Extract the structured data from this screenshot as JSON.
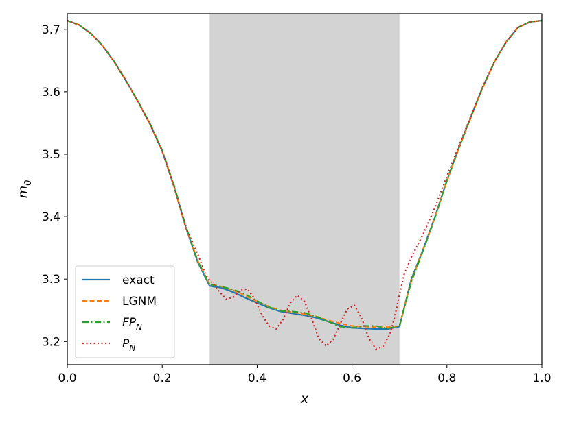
{
  "chart_data": {
    "type": "line",
    "xlabel": "x",
    "ylabel": "m",
    "ylabel_sub": "0",
    "xlim": [
      0.0,
      1.0
    ],
    "ylim": [
      3.163,
      3.725
    ],
    "xticks": [
      0.0,
      0.2,
      0.4,
      0.6,
      0.8,
      1.0
    ],
    "xtick_labels": [
      "0.0",
      "0.2",
      "0.4",
      "0.6",
      "0.8",
      "1.0"
    ],
    "yticks": [
      3.2,
      3.3,
      3.4,
      3.5,
      3.6,
      3.7
    ],
    "ytick_labels": [
      "3.2",
      "3.3",
      "3.4",
      "3.5",
      "3.6",
      "3.7"
    ],
    "grid": false,
    "shaded_region": {
      "x_start": 0.3,
      "x_end": 0.7,
      "color": "#d3d3d3"
    },
    "legend_position": "lower-left",
    "series": [
      {
        "name": "exact",
        "color": "#1f77b4",
        "style": "solid",
        "x": [
          0.0,
          0.025,
          0.05,
          0.075,
          0.1,
          0.125,
          0.15,
          0.175,
          0.2,
          0.225,
          0.25,
          0.275,
          0.3,
          0.325,
          0.35,
          0.375,
          0.4,
          0.425,
          0.45,
          0.475,
          0.5,
          0.525,
          0.55,
          0.575,
          0.6,
          0.625,
          0.65,
          0.675,
          0.7,
          0.725,
          0.75,
          0.775,
          0.8,
          0.825,
          0.85,
          0.875,
          0.9,
          0.925,
          0.95,
          0.975,
          1.0
        ],
        "y": [
          3.714,
          3.707,
          3.693,
          3.673,
          3.647,
          3.616,
          3.583,
          3.547,
          3.505,
          3.448,
          3.382,
          3.327,
          3.289,
          3.286,
          3.279,
          3.27,
          3.262,
          3.254,
          3.248,
          3.245,
          3.242,
          3.238,
          3.232,
          3.226,
          3.222,
          3.221,
          3.22,
          3.22,
          3.224,
          3.3,
          3.348,
          3.4,
          3.458,
          3.51,
          3.559,
          3.607,
          3.648,
          3.68,
          3.703,
          3.712,
          3.714
        ]
      },
      {
        "name": "LGNM",
        "color": "#ff7f0e",
        "style": "dashed",
        "x": [
          0.0,
          0.025,
          0.05,
          0.075,
          0.1,
          0.125,
          0.15,
          0.175,
          0.2,
          0.225,
          0.25,
          0.275,
          0.3,
          0.325,
          0.35,
          0.375,
          0.4,
          0.425,
          0.45,
          0.475,
          0.5,
          0.525,
          0.55,
          0.575,
          0.6,
          0.625,
          0.65,
          0.675,
          0.7,
          0.725,
          0.75,
          0.775,
          0.8,
          0.825,
          0.85,
          0.875,
          0.9,
          0.925,
          0.95,
          0.975,
          1.0
        ],
        "y": [
          3.714,
          3.707,
          3.693,
          3.673,
          3.647,
          3.616,
          3.583,
          3.547,
          3.505,
          3.448,
          3.382,
          3.329,
          3.292,
          3.288,
          3.282,
          3.273,
          3.264,
          3.256,
          3.25,
          3.247,
          3.244,
          3.24,
          3.234,
          3.229,
          3.225,
          3.224,
          3.223,
          3.223,
          3.225,
          3.298,
          3.347,
          3.399,
          3.457,
          3.509,
          3.558,
          3.606,
          3.648,
          3.68,
          3.703,
          3.712,
          3.714
        ]
      },
      {
        "name": "FP",
        "name_sub": "N",
        "color": "#2ca02c",
        "style": "dashdot",
        "x": [
          0.0,
          0.025,
          0.05,
          0.075,
          0.1,
          0.125,
          0.15,
          0.175,
          0.2,
          0.225,
          0.25,
          0.275,
          0.3,
          0.325,
          0.35,
          0.375,
          0.4,
          0.425,
          0.45,
          0.475,
          0.5,
          0.525,
          0.55,
          0.575,
          0.6,
          0.625,
          0.65,
          0.675,
          0.7,
          0.725,
          0.75,
          0.775,
          0.8,
          0.825,
          0.85,
          0.875,
          0.9,
          0.925,
          0.95,
          0.975,
          1.0
        ],
        "y": [
          3.714,
          3.707,
          3.693,
          3.673,
          3.647,
          3.616,
          3.583,
          3.548,
          3.506,
          3.45,
          3.384,
          3.328,
          3.291,
          3.288,
          3.283,
          3.276,
          3.265,
          3.255,
          3.249,
          3.248,
          3.246,
          3.24,
          3.232,
          3.224,
          3.222,
          3.225,
          3.225,
          3.221,
          3.225,
          3.296,
          3.346,
          3.399,
          3.458,
          3.51,
          3.559,
          3.607,
          3.648,
          3.68,
          3.703,
          3.712,
          3.714
        ]
      },
      {
        "name": "P",
        "name_sub": "N",
        "color": "#d62728",
        "style": "dotted",
        "x": [
          0.0,
          0.025,
          0.05,
          0.075,
          0.1,
          0.125,
          0.15,
          0.175,
          0.2,
          0.225,
          0.25,
          0.275,
          0.29,
          0.3,
          0.31,
          0.32,
          0.335,
          0.35,
          0.365,
          0.38,
          0.395,
          0.41,
          0.425,
          0.44,
          0.455,
          0.47,
          0.485,
          0.5,
          0.515,
          0.53,
          0.545,
          0.56,
          0.575,
          0.59,
          0.605,
          0.62,
          0.635,
          0.65,
          0.665,
          0.68,
          0.69,
          0.7,
          0.71,
          0.725,
          0.75,
          0.775,
          0.8,
          0.825,
          0.85,
          0.875,
          0.9,
          0.925,
          0.95,
          0.975,
          1.0
        ],
        "y": [
          3.714,
          3.707,
          3.693,
          3.673,
          3.647,
          3.616,
          3.583,
          3.547,
          3.505,
          3.448,
          3.382,
          3.34,
          3.31,
          3.298,
          3.291,
          3.28,
          3.268,
          3.271,
          3.283,
          3.284,
          3.268,
          3.243,
          3.225,
          3.22,
          3.236,
          3.262,
          3.274,
          3.264,
          3.236,
          3.205,
          3.193,
          3.203,
          3.228,
          3.252,
          3.258,
          3.238,
          3.206,
          3.188,
          3.192,
          3.212,
          3.24,
          3.275,
          3.308,
          3.335,
          3.372,
          3.415,
          3.465,
          3.513,
          3.56,
          3.607,
          3.648,
          3.68,
          3.703,
          3.712,
          3.714
        ]
      }
    ]
  }
}
